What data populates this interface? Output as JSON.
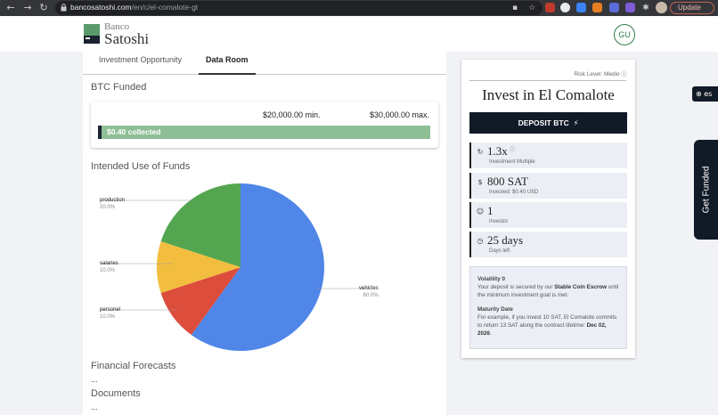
{
  "browser": {
    "url_domain": "bancosatoshi.com",
    "url_path": "/en/c/el-comalote-gt",
    "update_label": "Update",
    "nav_icons": [
      "back-icon",
      "forward-icon",
      "reload-icon"
    ]
  },
  "header": {
    "logo_top": "Banco",
    "logo_bottom": "Satoshi",
    "user_initials": "GU"
  },
  "tabs": [
    {
      "label": "Investment Opportunity",
      "active": false
    },
    {
      "label": "Data Room",
      "active": true
    }
  ],
  "funded": {
    "title": "BTC Funded",
    "min": "$20,000.00 min.",
    "max": "$30,000.00 max.",
    "collected": "$0.40 collected",
    "progress_fraction": 0.01
  },
  "use_of_funds": {
    "title": "Intended Use of Funds"
  },
  "chart_data": {
    "type": "pie",
    "title": "Intended Use of Funds",
    "slices": [
      {
        "label": "vehicles",
        "value": 60.0,
        "display": "60.0%",
        "color": "#4f86e8"
      },
      {
        "label": "personel",
        "value": 10.0,
        "display": "10.0%",
        "color": "#dc4d3c"
      },
      {
        "label": "salaries",
        "value": 10.0,
        "display": "10.0%",
        "color": "#f3be3f"
      },
      {
        "label": "production",
        "value": 20.0,
        "display": "20.0%",
        "color": "#54a550"
      }
    ],
    "start": "12 o'clock, clockwise"
  },
  "forecasts": {
    "title": "Financial Forecasts",
    "content": "..."
  },
  "documents": {
    "title": "Documents",
    "content": "..."
  },
  "invest": {
    "risk_label": "Risk Level: Medio",
    "title": "Invest in El Comalote",
    "deposit_label": "DEPOSIT BTC",
    "stats": [
      {
        "value": "1.3x",
        "sub": "Investment Multiple",
        "icon": "multiple-icon"
      },
      {
        "value": "800 SAT",
        "sub": "Invested: $0.40 USD",
        "icon": "coins-icon"
      },
      {
        "value": "1",
        "sub": "Investor",
        "icon": "investor-icon"
      },
      {
        "value": "25 days",
        "sub": "Days left",
        "icon": "timer-icon"
      }
    ],
    "volatility_title": "Volatility 0",
    "volatility_text_1": "Your deposit is secured by our ",
    "volatility_bold": "Stable Coin Escrow",
    "volatility_text_2": " until the minimum investment goal is met.",
    "maturity_title": "Maturity Date",
    "maturity_text": "For example, if you invest 10 SAT, El Comalote commits to return 13 SAT along the contract lifetime: ",
    "maturity_date": "Dec 02, 2026",
    "maturity_end": "."
  },
  "side": {
    "lang": "es",
    "get_funded": "Get Funded"
  },
  "colors": {
    "accent_dark": "#111a27",
    "progress_green": "#8fbf96"
  }
}
